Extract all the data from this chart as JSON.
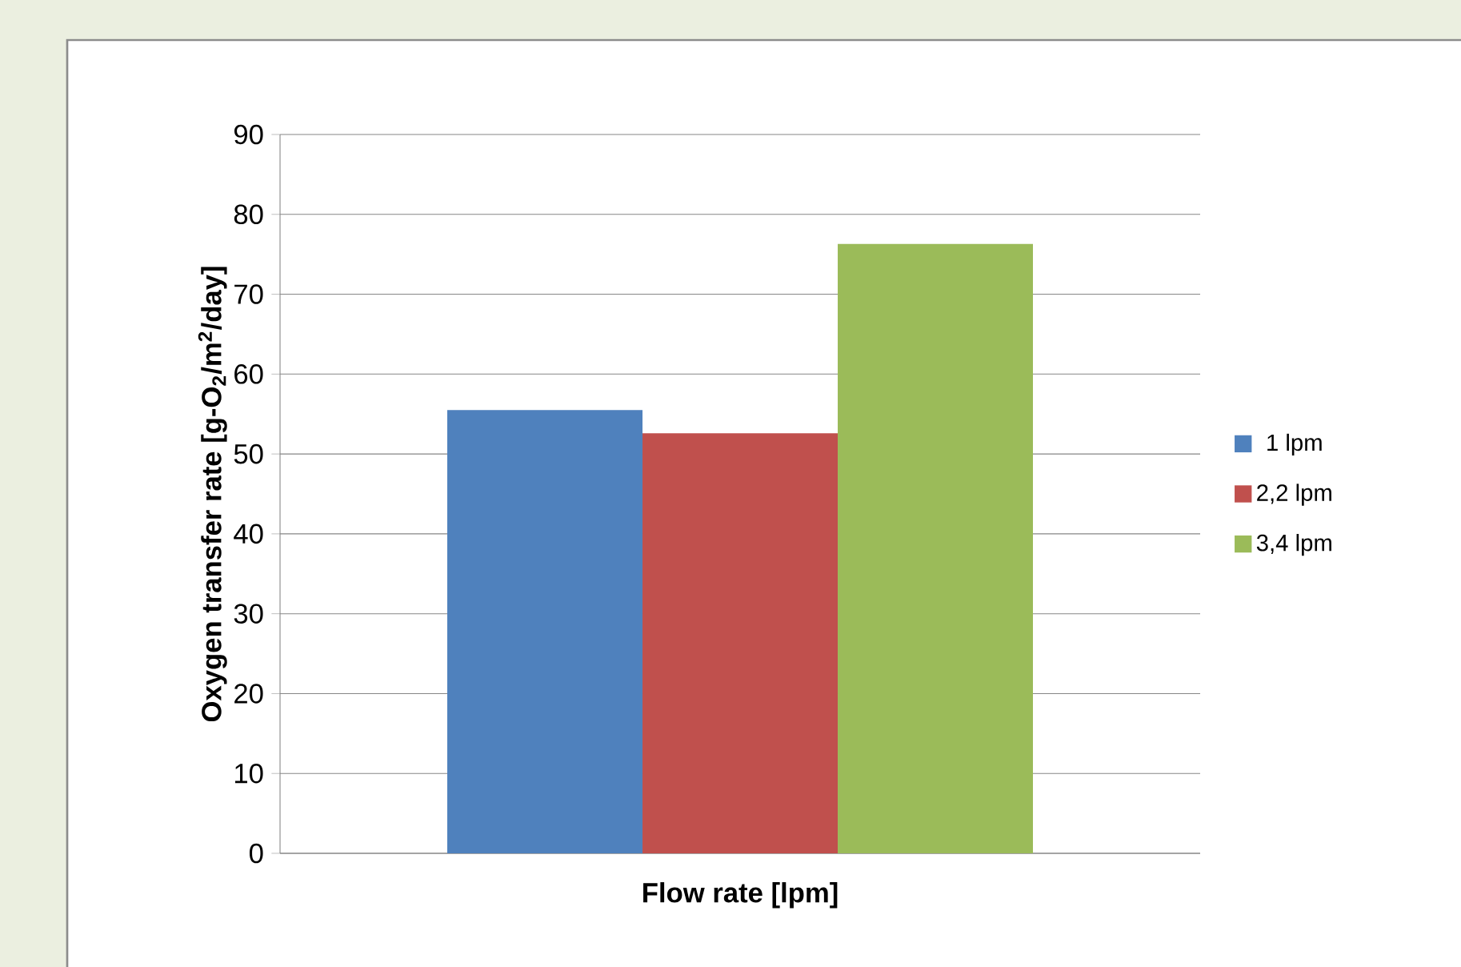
{
  "chart_data": {
    "type": "bar",
    "xlabel": "Flow rate [lpm]",
    "ylabel": "Oxygen transfer rate [g-O$_{2}$/m$^{2}$/day]",
    "categories": [
      null
    ],
    "series": [
      {
        "name": "1 lpm",
        "color": "#4f81bd",
        "values": [
          55.5
        ]
      },
      {
        "name": "2,2 lpm",
        "color": "#c0504d",
        "values": [
          52.6
        ]
      },
      {
        "name": "3,4 lpm",
        "color": "#9bbb59",
        "values": [
          76.3
        ]
      }
    ],
    "ylim": [
      0,
      90
    ],
    "yticks": [
      0,
      10,
      20,
      30,
      40,
      50,
      60,
      70,
      80,
      90
    ],
    "grid": "y",
    "legend": "right"
  }
}
